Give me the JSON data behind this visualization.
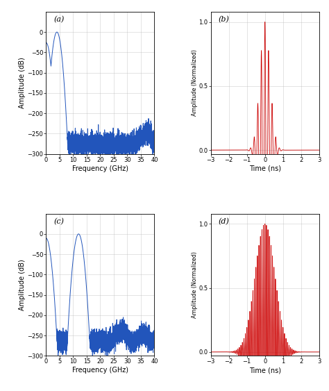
{
  "fig_width": 4.74,
  "fig_height": 5.63,
  "dpi": 100,
  "bg_color": "#ffffff",
  "blue_color": "#2255bb",
  "red_color": "#cc0000",
  "panel_labels": [
    "(a)",
    "(b)",
    "(c)",
    "(d)"
  ],
  "freq_xlim": [
    0,
    40
  ],
  "freq_ylim": [
    -300,
    50
  ],
  "freq_yticks": [
    0,
    -50,
    -100,
    -150,
    -200,
    -250,
    -300
  ],
  "freq_xticks": [
    0,
    5,
    10,
    15,
    20,
    25,
    30,
    35,
    40
  ],
  "freq_xlabel": "Frequency (GHz)",
  "freq_ylabel": "Amplitude (dB)",
  "time_xlim": [
    -3,
    3
  ],
  "time_xticks": [
    -3,
    -2,
    -1,
    0,
    1,
    2,
    3
  ],
  "time_yticks_b": [
    0,
    0.5,
    1
  ],
  "time_yticks_d": [
    0,
    0.5,
    1
  ],
  "time_xlabel": "Time (ns)",
  "time_ylabel": "Amplitude (Normalized)",
  "pulse_b_carrier": 5.0,
  "pulse_b_sigma": 0.28,
  "pulse_d_carrier": 12.0,
  "pulse_d_sigma": 0.55,
  "freq_a_carrier": 4.0,
  "freq_a_sigma": 0.32,
  "freq_c_carrier": 12.0,
  "freq_c_sigma": 0.3,
  "noise_floor": -275,
  "noise_std": 12,
  "grid_color": "#bbbbbb",
  "tick_fontsize": 6,
  "label_fontsize": 7,
  "panel_label_fontsize": 8
}
